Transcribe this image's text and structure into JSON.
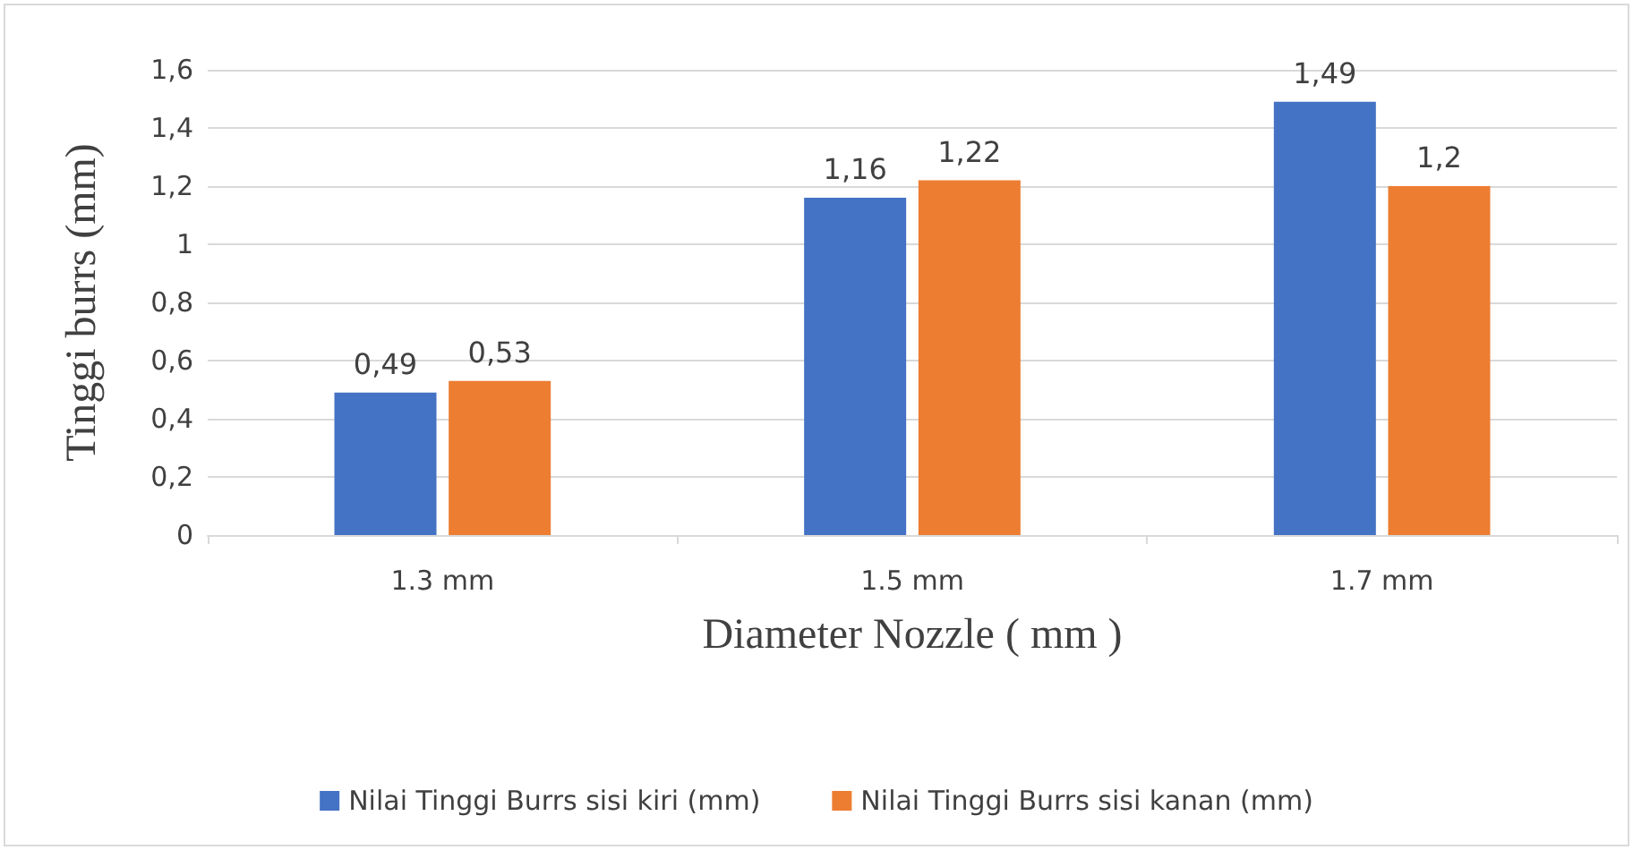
{
  "chart_data": {
    "type": "bar",
    "xlabel": "Diameter Nozzle ( mm )",
    "ylabel": "Tinggi burrs (mm)",
    "categories": [
      "1.3 mm",
      "1.5 mm",
      "1.7 mm"
    ],
    "series": [
      {
        "name": "Nilai Tinggi Burrs sisi kiri (mm)",
        "color": "#4472c4",
        "values": [
          0.49,
          1.16,
          1.49
        ],
        "value_labels": [
          "0,49",
          "1,16",
          "1,49"
        ]
      },
      {
        "name": "Nilai Tinggi Burrs sisi kanan (mm)",
        "color": "#ed7d31",
        "values": [
          0.53,
          1.22,
          1.2
        ],
        "value_labels": [
          "0,53",
          "1,22",
          "1,2"
        ]
      }
    ],
    "ylim": [
      0,
      1.6
    ],
    "yticks": [
      {
        "value": 0,
        "label": "0"
      },
      {
        "value": 0.2,
        "label": "0,2"
      },
      {
        "value": 0.4,
        "label": "0,4"
      },
      {
        "value": 0.6,
        "label": "0,6"
      },
      {
        "value": 0.8,
        "label": "0,8"
      },
      {
        "value": 1,
        "label": "1"
      },
      {
        "value": 1.2,
        "label": "1,2"
      },
      {
        "value": 1.4,
        "label": "1,4"
      },
      {
        "value": 1.6,
        "label": "1,6"
      }
    ],
    "grid": "y",
    "legend": "bottom"
  }
}
